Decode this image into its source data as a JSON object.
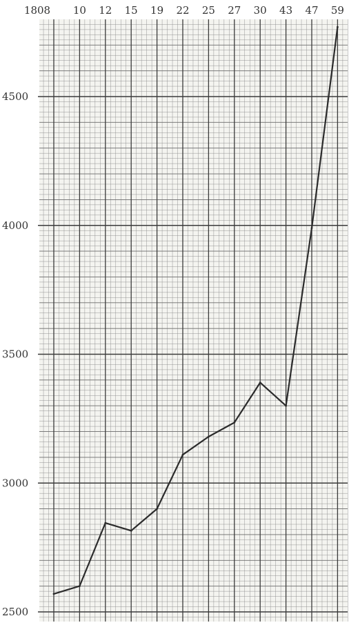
{
  "chart_data": {
    "type": "line",
    "title": "",
    "xlabel": "",
    "ylabel": "",
    "x": [
      "1808",
      "10",
      "12",
      "15",
      "19",
      "22",
      "25",
      "27",
      "30",
      "43",
      "47",
      "59"
    ],
    "series": [
      {
        "values": [
          2570,
          2600,
          2845,
          2815,
          2900,
          3110,
          3180,
          3235,
          3390,
          3300,
          3990,
          4770
        ]
      }
    ],
    "yticks": [
      "2500",
      "3000",
      "3500",
      "4000",
      "4500"
    ],
    "ylim": [
      2500,
      4800
    ],
    "grid": true,
    "legend": "none",
    "colors": {
      "line": "#2b2b2b",
      "grid_minor": "#8a8a8a",
      "grid_major": "#3a3a3a",
      "paper": "#f4f4f0"
    }
  }
}
